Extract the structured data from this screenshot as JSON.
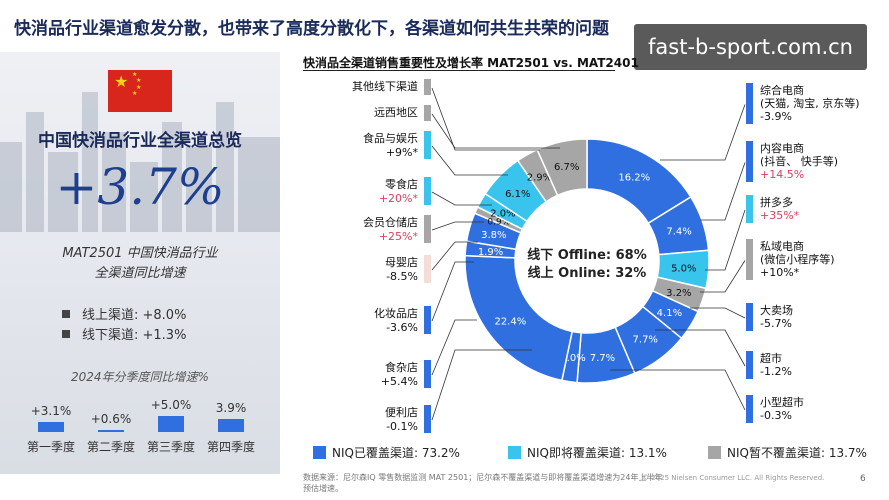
{
  "page": {
    "title": "快消品行业渠道愈发分散，也带来了高度分散化下，各渠道如何共生共荣的问题",
    "watermark": "fast-b-sport.com.cn",
    "page_number": "6"
  },
  "left": {
    "heading": "中国快消品行业全渠道总览",
    "big_number": "+3.7%",
    "subtitle_line1": "MAT2501 中国快消品行业",
    "subtitle_line2": "全渠道同比增速",
    "online": "线上渠道:  +8.0%",
    "offline": "线下渠道:  +1.3%",
    "quarter_title": "2024年分季度同比增速%",
    "quarters": [
      {
        "label": "第一季度",
        "value": "+3.1%",
        "num": 3.1
      },
      {
        "label": "第二季度",
        "value": "+0.6%",
        "num": 0.6
      },
      {
        "label": "第三季度",
        "value": "+5.0%",
        "num": 5.0
      },
      {
        "label": "第四季度",
        "value": "3.9%",
        "num": 3.9
      }
    ]
  },
  "chart_data": {
    "type": "pie",
    "title": "快消品全渠道销售重要性及增长率 MAT2501 vs. MAT2401",
    "center_line1": "线下 Offline: 68%",
    "center_line2": "线上 Online: 32%",
    "slices": [
      {
        "label": "综合电商",
        "value": 16.2,
        "value_label": "16.2%",
        "group": "covered"
      },
      {
        "label": "内容电商",
        "value": 7.4,
        "value_label": "7.4%",
        "group": "covered"
      },
      {
        "label": "拼多多",
        "value": 5.0,
        "value_label": "5.0%",
        "group": "upcoming"
      },
      {
        "label": "私域电商",
        "value": 3.2,
        "value_label": "3.2%",
        "group": "not"
      },
      {
        "label": "大卖场",
        "value": 4.1,
        "value_label": "4.1%",
        "group": "covered"
      },
      {
        "label": "超市",
        "value": 7.7,
        "value_label": "7.7%",
        "group": "covered"
      },
      {
        "label": "小型超市",
        "value": 7.7,
        "value_label": "7.7%",
        "group": "covered"
      },
      {
        "label": "便利店",
        "value": 2.0,
        "value_label": "2.0%",
        "group": "covered"
      },
      {
        "label": "食杂店",
        "value": 22.4,
        "value_label": "22.4%",
        "group": "covered"
      },
      {
        "label": "化妆品店",
        "value": 1.9,
        "value_label": "1.9%",
        "group": "covered"
      },
      {
        "label": "母婴店",
        "value": 3.8,
        "value_label": "3.8%",
        "group": "covered"
      },
      {
        "label": "会员仓储店",
        "value": 0.9,
        "value_label": "0.9%",
        "group": "not"
      },
      {
        "label": "零食店",
        "value": 2.0,
        "value_label": "2.0%",
        "group": "upcoming"
      },
      {
        "label": "食品与娱乐",
        "value": 6.1,
        "value_label": "6.1%",
        "group": "upcoming"
      },
      {
        "label": "远西地区",
        "value": 2.9,
        "value_label": "2.9%",
        "group": "not"
      },
      {
        "label": "其他线下渠道",
        "value": 6.7,
        "value_label": "6.7%",
        "group": "not"
      }
    ],
    "left_labels": [
      {
        "name": "其他线下渠道",
        "growth": "",
        "color": "gray",
        "pink": false
      },
      {
        "name": "远西地区",
        "growth": "",
        "color": "gray",
        "pink": false
      },
      {
        "name": "食品与娱乐",
        "growth": "+9%*",
        "color": "cyan",
        "pink": false
      },
      {
        "name": "零食店",
        "growth": "+20%*",
        "color": "cyan",
        "pink": true
      },
      {
        "name": "会员仓储店",
        "growth": "+25%*",
        "color": "gray",
        "pink": true
      },
      {
        "name": "母婴店",
        "growth": "-8.5%",
        "color": "light",
        "pink": false
      },
      {
        "name": "化妆品店",
        "growth": "-3.6%",
        "color": "blue",
        "pink": false
      },
      {
        "name": "食杂店",
        "growth": "+5.4%",
        "color": "blue",
        "pink": false
      },
      {
        "name": "便利店",
        "growth": "-0.1%",
        "color": "blue",
        "pink": false
      }
    ],
    "right_labels": [
      {
        "name": "综合电商",
        "sub": "(天猫, 淘宝, 京东等)",
        "growth": "-3.9%",
        "color": "blue",
        "pink": false
      },
      {
        "name": "内容电商",
        "sub": "(抖音、 快手等)",
        "growth": "+14.5%",
        "color": "blue",
        "pink": true
      },
      {
        "name": "拼多多",
        "sub": "",
        "growth": "+35%*",
        "color": "cyan",
        "pink": true
      },
      {
        "name": "私域电商",
        "sub": "(微信小程序等)",
        "growth": "+10%*",
        "color": "gray",
        "pink": false
      },
      {
        "name": "大卖场",
        "sub": "",
        "growth": "-5.7%",
        "color": "blue",
        "pink": false
      },
      {
        "name": "超市",
        "sub": "",
        "growth": "-1.2%",
        "color": "blue",
        "pink": false
      },
      {
        "name": "小型超市",
        "sub": "",
        "growth": "-0.3%",
        "color": "blue",
        "pink": false
      }
    ],
    "legend": [
      {
        "label": "NIQ已覆盖渠道:  73.2%",
        "color": "#2f6fe0"
      },
      {
        "label": "NIQ即将覆盖渠道:  13.1%",
        "color": "#38c4ec"
      },
      {
        "label": "NIQ暂不覆盖渠道:  13.7%",
        "color": "#a6a6a6"
      }
    ],
    "colors": {
      "covered": "#2f6fe0",
      "upcoming": "#38c4ec",
      "not": "#a6a6a6",
      "light": "#f3ddd6"
    }
  },
  "footnote": "数据来源：尼尔森IQ 零售数据监测 MAT 2501；尼尔森不覆盖渠道与即将覆盖渠道增速为24年上半年预估增速。",
  "copyright": "© 2025 Nielsen Consumer LLC. All Rights Reserved."
}
